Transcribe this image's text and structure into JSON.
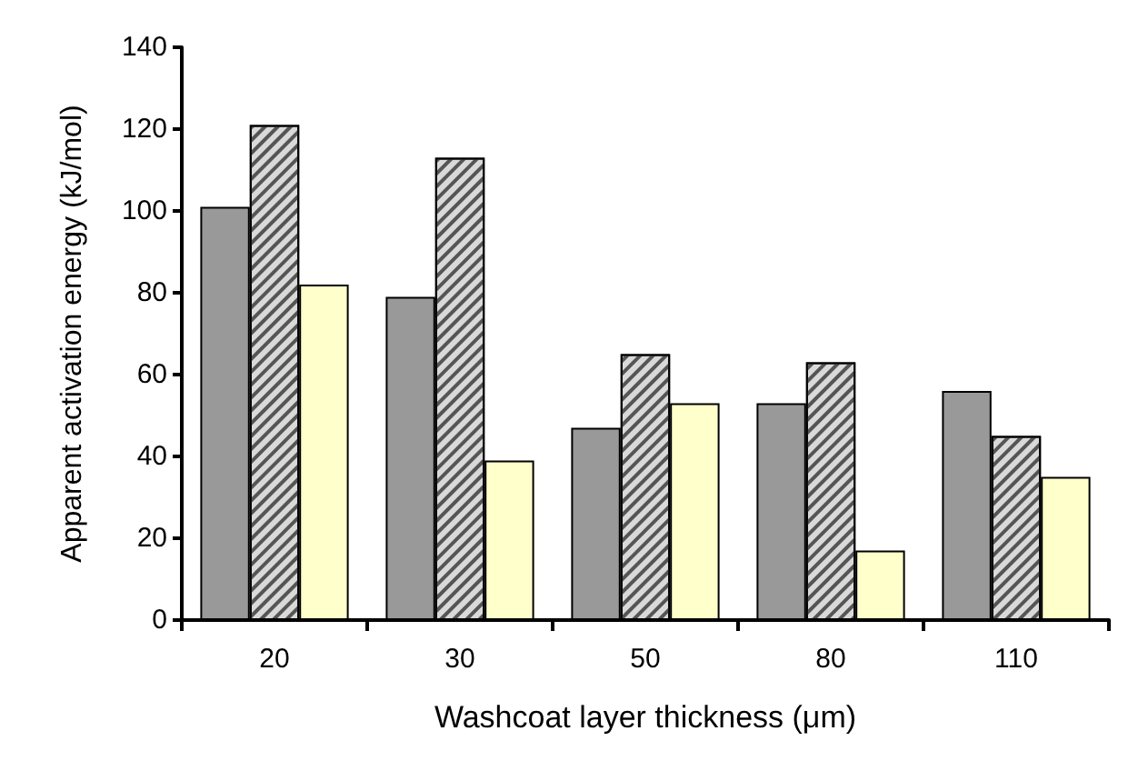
{
  "chart_data": {
    "type": "bar",
    "xlabel": "Washcoat layer thickness (μm)",
    "ylabel": "Apparent activation energy (kJ/mol)",
    "categories": [
      "20",
      "30",
      "50",
      "80",
      "110"
    ],
    "series": [
      {
        "color": "#999999",
        "values": [
          101,
          79,
          47,
          53,
          56
        ]
      },
      {
        "color": "#d9d9d9",
        "values": [
          121,
          113,
          65,
          63,
          45
        ]
      },
      {
        "color": "#ffffcc",
        "values": [
          82,
          39,
          53,
          17,
          35
        ]
      }
    ],
    "ylim": [
      0,
      140
    ],
    "yticks": [
      0,
      20,
      40,
      60,
      80,
      100,
      120,
      140
    ],
    "grid": false
  }
}
